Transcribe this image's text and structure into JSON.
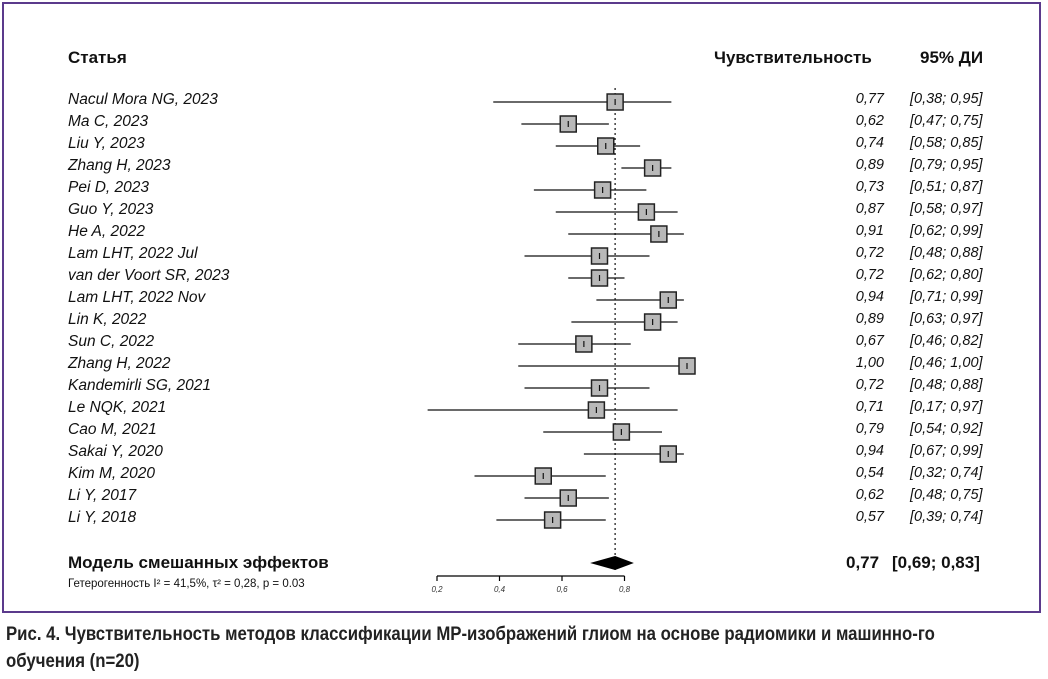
{
  "headers": {
    "study": "Статья",
    "sensitivity": "Чувствительность",
    "ci": "95% ДИ"
  },
  "chart_data": {
    "type": "forest",
    "xlim": [
      0.2,
      0.8
    ],
    "ticks": [
      "0,2",
      "0,4",
      "0,6",
      "0,8"
    ],
    "tick_values": [
      0.2,
      0.4,
      0.6,
      0.8
    ],
    "reference_line": 0.77,
    "studies": [
      {
        "name": "Nacul Mora NG, 2023",
        "est": 0.77,
        "lo": 0.38,
        "hi": 0.95,
        "est_label": "0,77",
        "ci_label": "[0,38; 0,95]"
      },
      {
        "name": "Ma C, 2023",
        "est": 0.62,
        "lo": 0.47,
        "hi": 0.75,
        "est_label": "0,62",
        "ci_label": "[0,47; 0,75]"
      },
      {
        "name": "Liu Y, 2023",
        "est": 0.74,
        "lo": 0.58,
        "hi": 0.85,
        "est_label": "0,74",
        "ci_label": "[0,58; 0,85]"
      },
      {
        "name": "Zhang H, 2023",
        "est": 0.89,
        "lo": 0.79,
        "hi": 0.95,
        "est_label": "0,89",
        "ci_label": "[0,79; 0,95]"
      },
      {
        "name": "Pei D, 2023",
        "est": 0.73,
        "lo": 0.51,
        "hi": 0.87,
        "est_label": "0,73",
        "ci_label": "[0,51; 0,87]"
      },
      {
        "name": "Guo Y, 2023",
        "est": 0.87,
        "lo": 0.58,
        "hi": 0.97,
        "est_label": "0,87",
        "ci_label": "[0,58; 0,97]"
      },
      {
        "name": "He A, 2022",
        "est": 0.91,
        "lo": 0.62,
        "hi": 0.99,
        "est_label": "0,91",
        "ci_label": "[0,62; 0,99]"
      },
      {
        "name": "Lam LHT, 2022 Jul",
        "est": 0.72,
        "lo": 0.48,
        "hi": 0.88,
        "est_label": "0,72",
        "ci_label": "[0,48; 0,88]"
      },
      {
        "name": "van der Voort SR, 2023",
        "est": 0.72,
        "lo": 0.62,
        "hi": 0.8,
        "est_label": "0,72",
        "ci_label": "[0,62; 0,80]"
      },
      {
        "name": "Lam LHT, 2022 Nov",
        "est": 0.94,
        "lo": 0.71,
        "hi": 0.99,
        "est_label": "0,94",
        "ci_label": "[0,71; 0,99]"
      },
      {
        "name": "Lin K, 2022",
        "est": 0.89,
        "lo": 0.63,
        "hi": 0.97,
        "est_label": "0,89",
        "ci_label": "[0,63; 0,97]"
      },
      {
        "name": "Sun C, 2022",
        "est": 0.67,
        "lo": 0.46,
        "hi": 0.82,
        "est_label": "0,67",
        "ci_label": "[0,46; 0,82]"
      },
      {
        "name": "Zhang H, 2022",
        "est": 1.0,
        "lo": 0.46,
        "hi": 1.0,
        "est_label": "1,00",
        "ci_label": "[0,46; 1,00]"
      },
      {
        "name": "Kandemirli SG, 2021",
        "est": 0.72,
        "lo": 0.48,
        "hi": 0.88,
        "est_label": "0,72",
        "ci_label": "[0,48; 0,88]"
      },
      {
        "name": "Le NQK, 2021",
        "est": 0.71,
        "lo": 0.17,
        "hi": 0.97,
        "est_label": "0,71",
        "ci_label": "[0,17; 0,97]"
      },
      {
        "name": "Cao M, 2021",
        "est": 0.79,
        "lo": 0.54,
        "hi": 0.92,
        "est_label": "0,79",
        "ci_label": "[0,54; 0,92]"
      },
      {
        "name": "Sakai Y, 2020",
        "est": 0.94,
        "lo": 0.67,
        "hi": 0.99,
        "est_label": "0,94",
        "ci_label": "[0,67; 0,99]"
      },
      {
        "name": "Kim M, 2020",
        "est": 0.54,
        "lo": 0.32,
        "hi": 0.74,
        "est_label": "0,54",
        "ci_label": "[0,32; 0,74]"
      },
      {
        "name": "Li Y, 2017",
        "est": 0.62,
        "lo": 0.48,
        "hi": 0.75,
        "est_label": "0,62",
        "ci_label": "[0,48; 0,75]"
      },
      {
        "name": "Li Y, 2018",
        "est": 0.57,
        "lo": 0.39,
        "hi": 0.74,
        "est_label": "0,57",
        "ci_label": "[0,39; 0,74]"
      }
    ],
    "summary": {
      "label": "Модель смешанных эффектов",
      "est": 0.77,
      "lo": 0.69,
      "hi": 0.83,
      "est_label": "0,77",
      "ci_label": "[0,69; 0,83]"
    },
    "heterogeneity": "Гетерогенность I² = 41,5%, τ² = 0,28, p = 0.03"
  },
  "caption": "Рис. 4. Чувствительность методов классификации МР-изображений глиом на основе радиомики и машинно-го обучения (n=20)",
  "colors": {
    "frame": "#5b3a8c",
    "box": "#b8b8b8"
  }
}
